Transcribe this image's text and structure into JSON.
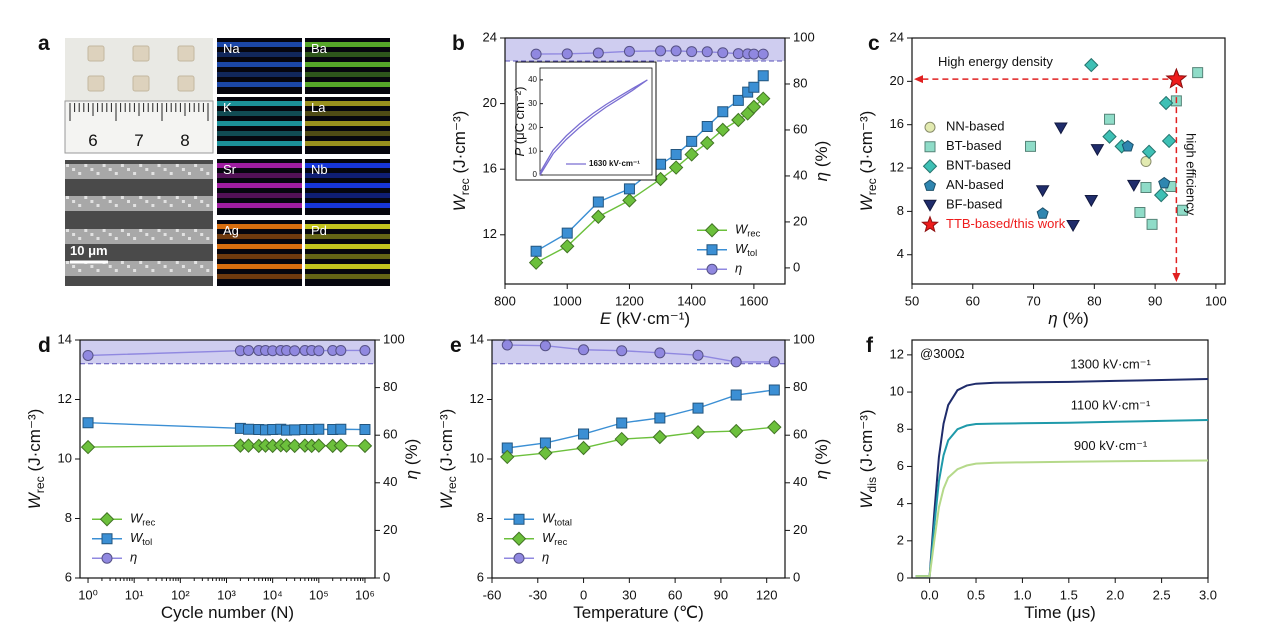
{
  "panel_a": {
    "label": "a",
    "ruler_labels": [
      "6",
      "7",
      "8"
    ],
    "scale_bar": "10 μm",
    "maps": [
      {
        "element": "Na",
        "color": "#1e4fb8"
      },
      {
        "element": "Ba",
        "color": "#5fb82e"
      },
      {
        "element": "K",
        "color": "#1fa0a8"
      },
      {
        "element": "La",
        "color": "#a8a020"
      },
      {
        "element": "Sr",
        "color": "#b020b0"
      },
      {
        "element": "Nb",
        "color": "#1a3cf0"
      },
      {
        "element": "Ag",
        "color": "#f07a10"
      },
      {
        "element": "Pd",
        "color": "#d8d820"
      }
    ]
  },
  "chart_data": [
    {
      "panel": "b",
      "type": "line",
      "xlabel": "E",
      "xlabel_unit": " (kV·cm⁻¹)",
      "ylabel": "W",
      "ylabel_sub": "rec",
      "ylabel_unit": " (J·cm⁻³)",
      "y2label": "η",
      "y2label_unit": " (%)",
      "x": [
        900,
        1000,
        1100,
        1200,
        1300,
        1350,
        1400,
        1450,
        1500,
        1550,
        1580,
        1600,
        1630
      ],
      "xlim": [
        800,
        1700
      ],
      "xticks": [
        800,
        1000,
        1200,
        1400,
        1600
      ],
      "ylim": [
        9,
        24
      ],
      "yticks": [
        12,
        16,
        20,
        24
      ],
      "y2lim": [
        -7,
        100
      ],
      "y2ticks": [
        0,
        20,
        40,
        60,
        80,
        100
      ],
      "highlight_y2": [
        90,
        100
      ],
      "highlight_color": "#cfcdf0",
      "legend": "lower right",
      "series": [
        {
          "name": "W",
          "name_sub": "rec",
          "color": "#6cc03c",
          "marker": "diamond",
          "values": [
            10.3,
            11.3,
            13.1,
            14.1,
            15.4,
            16.1,
            16.9,
            17.6,
            18.4,
            19.0,
            19.4,
            19.8,
            20.3
          ]
        },
        {
          "name": "W",
          "name_sub": "tol",
          "color": "#3b8fd4",
          "marker": "square",
          "values": [
            11.0,
            12.1,
            14.0,
            14.8,
            16.3,
            16.9,
            17.7,
            18.6,
            19.5,
            20.2,
            20.7,
            21.0,
            21.7
          ]
        },
        {
          "name": "η",
          "color": "#9088e0",
          "marker": "circle",
          "axis": "y2",
          "values": [
            93.0,
            93.1,
            93.5,
            94.2,
            94.4,
            94.4,
            94.1,
            94.0,
            93.6,
            93.2,
            93.1,
            93.0,
            93.0
          ]
        }
      ],
      "inset": {
        "ylabel": "P",
        "ylabel_unit": " (μC cm⁻²)",
        "xlim": [
          0,
          1700
        ],
        "ylim": [
          0,
          45
        ],
        "yticks": [
          0,
          10,
          20,
          30,
          40
        ],
        "series": [
          {
            "name": "1630 kV·cm⁻¹",
            "color": "#7a6ed2",
            "x": [
              0,
              200,
              400,
              600,
              800,
              1000,
              1200,
              1400,
              1630,
              1400,
              1200,
              1000,
              800,
              600,
              400,
              200,
              0
            ],
            "values": [
              0,
              9,
              15,
              20,
              24.5,
              28.5,
              32,
              35.5,
              40,
              36.3,
              33,
              29.6,
              25.8,
              21.5,
              16.5,
              10.5,
              1
            ]
          }
        ]
      }
    },
    {
      "panel": "c",
      "type": "scatter",
      "xlabel": "η",
      "xlabel_unit": " (%)",
      "ylabel": "W",
      "ylabel_sub": "rec",
      "ylabel_unit": " (J·cm⁻³)",
      "xlim": [
        50,
        101.5
      ],
      "xticks": [
        50,
        60,
        70,
        80,
        90,
        100
      ],
      "ylim": [
        1.3,
        24
      ],
      "yticks": [
        4,
        8,
        12,
        16,
        20,
        24
      ],
      "legend": "center left",
      "annotations": [
        "High energy density",
        "high efficiency"
      ],
      "guide_color": "#e02020",
      "series": [
        {
          "name": "NN-based",
          "color": "#e2eab0",
          "marker": "circle",
          "x": [
            88.5
          ],
          "values": [
            12.6
          ]
        },
        {
          "name": "BT-based",
          "color": "#8fdcc8",
          "marker": "square",
          "x": [
            69.5,
            82.5,
            87.5,
            88.5,
            89.5,
            92.6,
            93.5,
            94.5,
            97.0
          ],
          "values": [
            14.0,
            16.5,
            7.9,
            10.2,
            6.8,
            10.3,
            18.2,
            8.1,
            20.8
          ]
        },
        {
          "name": "BNT-based",
          "color": "#3ec0b5",
          "marker": "diamond",
          "x": [
            79.5,
            82.5,
            84.5,
            89.0,
            91.0,
            92.3,
            91.8
          ],
          "values": [
            21.5,
            14.9,
            14.0,
            13.5,
            9.5,
            14.5,
            18.0
          ]
        },
        {
          "name": "AN-based",
          "color": "#2f86b0",
          "marker": "pentagon",
          "x": [
            71.5,
            85.5,
            91.5
          ],
          "values": [
            7.8,
            14.0,
            10.6
          ]
        },
        {
          "name": "BF-based",
          "color": "#1f2c6b",
          "marker": "triangle-down",
          "x": [
            71.5,
            74.5,
            76.5,
            79.5,
            80.5,
            86.5
          ],
          "values": [
            9.9,
            15.7,
            6.7,
            9.0,
            13.7,
            10.4
          ]
        },
        {
          "name": "TTB-based/this work",
          "color": "#ee1c1c",
          "marker": "star",
          "x": [
            93.5
          ],
          "values": [
            20.2
          ]
        }
      ]
    },
    {
      "panel": "d",
      "type": "line",
      "xscale": "log",
      "xlabel": "Cycle number (N)",
      "ylabel": "W",
      "ylabel_sub": "rec",
      "ylabel_unit": " (J·cm⁻³)",
      "y2label": "η",
      "y2label_unit": " (%)",
      "x": [
        1,
        2000,
        3000,
        5000,
        7000,
        10000,
        15000,
        20000,
        30000,
        50000,
        70000,
        100000,
        200000,
        300000,
        1000000
      ],
      "xlim": [
        0.67,
        1650000
      ],
      "xticks": [
        {
          "value": 1,
          "label": "10⁰"
        },
        {
          "value": 10,
          "label": "10¹"
        },
        {
          "value": 100,
          "label": "10²"
        },
        {
          "value": 1000,
          "label": "10³"
        },
        {
          "value": 10000,
          "label": "10⁴"
        },
        {
          "value": 100000,
          "label": "10⁵"
        },
        {
          "value": 1000000,
          "label": "10⁶"
        }
      ],
      "ylim": [
        6,
        14
      ],
      "yticks": [
        6,
        8,
        10,
        12,
        14
      ],
      "y2lim": [
        0,
        100
      ],
      "y2ticks": [
        0,
        20,
        40,
        60,
        80,
        100
      ],
      "highlight_y2": [
        90,
        100
      ],
      "highlight_color": "#cfcdf0",
      "legend": "lower left",
      "series": [
        {
          "name": "W",
          "name_sub": "rec",
          "color": "#6cc03c",
          "marker": "diamond",
          "values": [
            10.4,
            10.45,
            10.45,
            10.44,
            10.45,
            10.44,
            10.46,
            10.45,
            10.44,
            10.45,
            10.44,
            10.45,
            10.44,
            10.45,
            10.44
          ]
        },
        {
          "name": "W",
          "name_sub": "tol",
          "color": "#3b8fd4",
          "marker": "square",
          "values": [
            11.22,
            11.03,
            11.0,
            10.99,
            10.98,
            10.99,
            11.0,
            10.97,
            10.98,
            10.99,
            10.99,
            11.0,
            10.99,
            11.0,
            10.99
          ]
        },
        {
          "name": "η",
          "color": "#9088e0",
          "marker": "circle",
          "axis": "y2",
          "values": [
            93.5,
            95.5,
            95.6,
            95.6,
            95.6,
            95.5,
            95.6,
            95.6,
            95.5,
            95.6,
            95.6,
            95.5,
            95.6,
            95.6,
            95.6
          ]
        }
      ]
    },
    {
      "panel": "e",
      "type": "line",
      "xlabel": "Temperature (℃)",
      "ylabel": "W",
      "ylabel_sub": "rec",
      "ylabel_unit": " (J·cm⁻³)",
      "y2label": "η",
      "y2label_unit": " (%)",
      "x": [
        -50,
        -25,
        0,
        25,
        50,
        75,
        100,
        125
      ],
      "xlim": [
        -60,
        132
      ],
      "xticks": [
        -60,
        -30,
        0,
        30,
        60,
        90,
        120
      ],
      "ylim": [
        6,
        14
      ],
      "yticks": [
        6,
        8,
        10,
        12,
        14
      ],
      "y2lim": [
        0,
        100
      ],
      "y2ticks": [
        0,
        20,
        40,
        60,
        80,
        100
      ],
      "highlight_y2": [
        90,
        100
      ],
      "highlight_color": "#cfcdf0",
      "legend": "lower left",
      "series": [
        {
          "name": "W",
          "name_sub": "total",
          "color": "#3b8fd4",
          "marker": "square",
          "values": [
            10.37,
            10.54,
            10.84,
            11.21,
            11.38,
            11.71,
            12.15,
            12.32
          ]
        },
        {
          "name": "W",
          "name_sub": "rec",
          "color": "#6cc03c",
          "marker": "diamond",
          "values": [
            10.07,
            10.2,
            10.37,
            10.67,
            10.74,
            10.9,
            10.94,
            11.07
          ]
        },
        {
          "name": "η",
          "color": "#9088e0",
          "marker": "circle",
          "axis": "y2",
          "values": [
            97.9,
            97.6,
            95.9,
            95.5,
            94.6,
            93.6,
            90.8,
            90.8
          ]
        }
      ]
    },
    {
      "panel": "f",
      "type": "line",
      "xlabel": "Time (μs)",
      "ylabel": "W",
      "ylabel_sub": "dis",
      "ylabel_unit": " (J·cm⁻³)",
      "annotation": "@300Ω",
      "legend": "on curves",
      "x": [
        -0.15,
        0,
        0.05,
        0.1,
        0.15,
        0.2,
        0.3,
        0.4,
        0.5,
        0.7,
        1.0,
        1.5,
        2.0,
        2.5,
        3.0
      ],
      "xlim": [
        -0.19,
        3
      ],
      "xticks": [
        {
          "value": 0,
          "label": "0.0"
        },
        0.5,
        {
          "value": 1,
          "label": "1.0"
        },
        1.5,
        {
          "value": 2,
          "label": "2.0"
        },
        2.5,
        {
          "value": 3,
          "label": "3.0"
        }
      ],
      "ylim": [
        0,
        12.8
      ],
      "yticks": [
        0,
        2,
        4,
        6,
        8,
        10,
        12
      ],
      "series": [
        {
          "name": "1300 kV·cm⁻¹",
          "color": "#1f2c6b",
          "values": [
            0.1,
            0.1,
            3.5,
            6.5,
            8.3,
            9.3,
            10.1,
            10.35,
            10.45,
            10.5,
            10.52,
            10.55,
            10.6,
            10.65,
            10.7
          ]
        },
        {
          "name": "1100 kV·cm⁻¹",
          "color": "#1f9aaa",
          "values": [
            0.1,
            0.1,
            2.8,
            5.2,
            6.6,
            7.4,
            8.0,
            8.2,
            8.28,
            8.3,
            8.32,
            8.35,
            8.4,
            8.45,
            8.5
          ]
        },
        {
          "name": "900 kV·cm⁻¹",
          "color": "#b5d98a",
          "values": [
            0.1,
            0.1,
            2.0,
            3.8,
            4.8,
            5.4,
            5.85,
            6.05,
            6.15,
            6.2,
            6.22,
            6.25,
            6.28,
            6.3,
            6.32
          ]
        }
      ]
    }
  ]
}
